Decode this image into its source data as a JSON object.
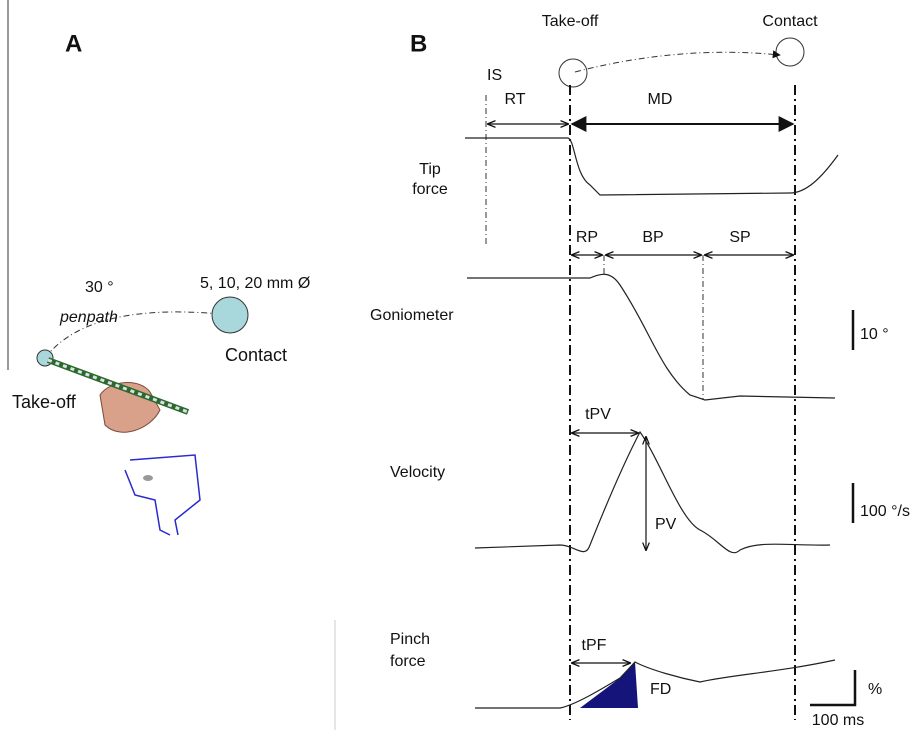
{
  "panel_a": {
    "label": "A",
    "angle": "30 °",
    "path_label": "penpath",
    "target_sizes": "5, 10, 20 mm Ø",
    "contact": "Contact",
    "takeoff": "Take-off"
  },
  "panel_b": {
    "label": "B",
    "takeoff": "Take-off",
    "contact": "Contact",
    "intervals": {
      "is": "IS",
      "rt": "RT",
      "md": "MD",
      "rp": "RP",
      "bp": "BP",
      "sp": "SP",
      "tpv": "tPV",
      "pv": "PV",
      "tpf": "tPF",
      "fd": "FD"
    },
    "traces": {
      "tip_force": [
        "Tip",
        "force"
      ],
      "goniometer": "Goniometer",
      "velocity": "Velocity",
      "pinch_force": [
        "Pinch",
        "force"
      ]
    },
    "scales": {
      "angle": "10 °",
      "velocity": "100 °/s",
      "force": "%",
      "time": "100 ms"
    }
  }
}
